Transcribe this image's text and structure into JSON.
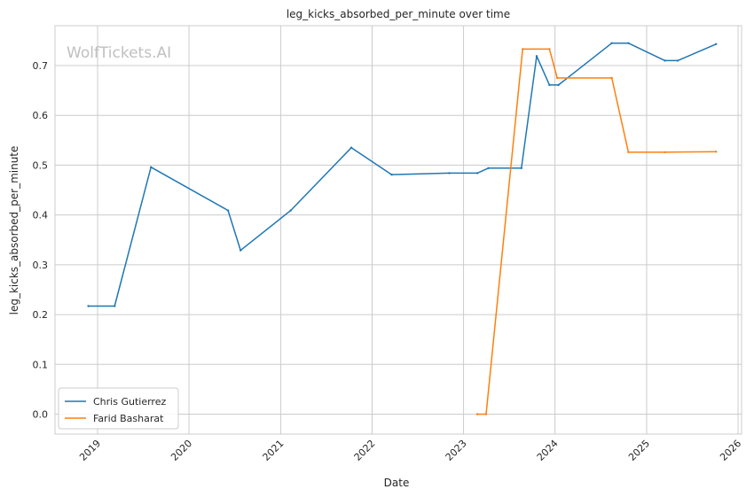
{
  "chart_data": {
    "type": "line",
    "title": "leg_kicks_absorbed_per_minute over time",
    "xlabel": "Date",
    "ylabel": "leg_kicks_absorbed_per_minute",
    "watermark": "WolfTickets.AI",
    "xlim": [
      "2018-07-15",
      "2026-01-15"
    ],
    "ylim": [
      -0.04,
      0.78
    ],
    "x_ticks": [
      "2019",
      "2020",
      "2021",
      "2022",
      "2023",
      "2024",
      "2025",
      "2026"
    ],
    "y_ticks": [
      "0.0",
      "0.1",
      "0.2",
      "0.3",
      "0.4",
      "0.5",
      "0.6",
      "0.7"
    ],
    "grid": true,
    "legend_position": "lower-left",
    "series": [
      {
        "name": "Chris Gutierrez",
        "color": "#1f77b4",
        "points": [
          {
            "x": "2018-11-25",
            "y": 0.217
          },
          {
            "x": "2019-03-10",
            "y": 0.217
          },
          {
            "x": "2019-08-02",
            "y": 0.496
          },
          {
            "x": "2020-06-05",
            "y": 0.409
          },
          {
            "x": "2020-07-25",
            "y": 0.329
          },
          {
            "x": "2021-02-10",
            "y": 0.409
          },
          {
            "x": "2021-10-10",
            "y": 0.535
          },
          {
            "x": "2022-03-20",
            "y": 0.481
          },
          {
            "x": "2022-11-05",
            "y": 0.484
          },
          {
            "x": "2023-02-25",
            "y": 0.484
          },
          {
            "x": "2023-04-10",
            "y": 0.494
          },
          {
            "x": "2023-08-20",
            "y": 0.494
          },
          {
            "x": "2023-10-20",
            "y": 0.719
          },
          {
            "x": "2023-12-10",
            "y": 0.661
          },
          {
            "x": "2024-01-15",
            "y": 0.661
          },
          {
            "x": "2024-08-15",
            "y": 0.745
          },
          {
            "x": "2024-10-20",
            "y": 0.745
          },
          {
            "x": "2025-03-15",
            "y": 0.71
          },
          {
            "x": "2025-05-05",
            "y": 0.71
          },
          {
            "x": "2025-10-05",
            "y": 0.743
          }
        ]
      },
      {
        "name": "Farid Basharat",
        "color": "#ff7f0e",
        "points": [
          {
            "x": "2023-02-25",
            "y": 0.0
          },
          {
            "x": "2023-04-01",
            "y": 0.0
          },
          {
            "x": "2023-08-25",
            "y": 0.733
          },
          {
            "x": "2023-12-10",
            "y": 0.733
          },
          {
            "x": "2024-01-10",
            "y": 0.675
          },
          {
            "x": "2024-08-15",
            "y": 0.675
          },
          {
            "x": "2024-10-20",
            "y": 0.526
          },
          {
            "x": "2025-03-15",
            "y": 0.526
          },
          {
            "x": "2025-10-05",
            "y": 0.527
          }
        ]
      }
    ]
  }
}
